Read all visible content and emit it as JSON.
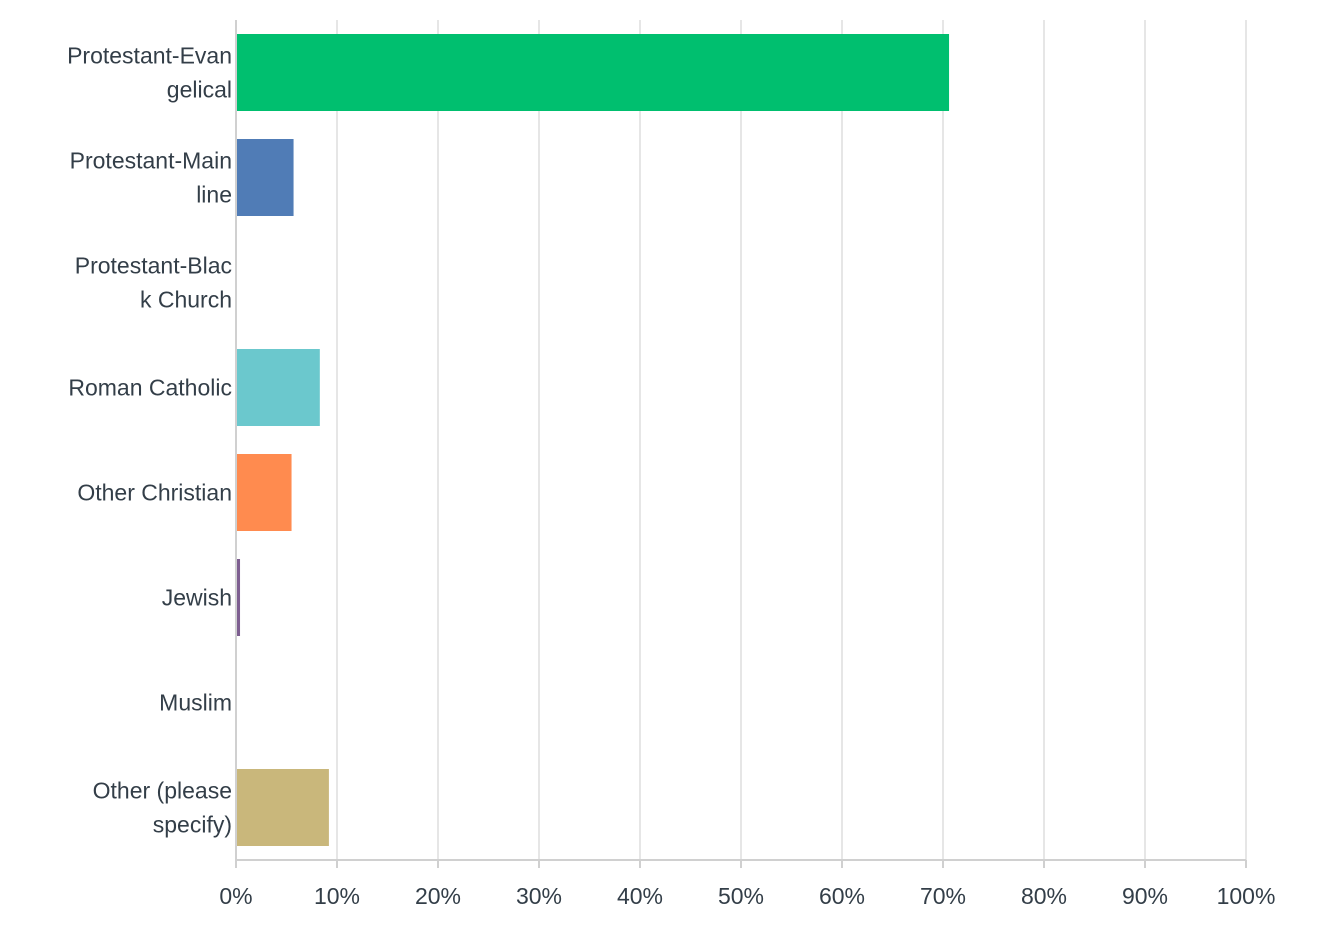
{
  "chart_data": {
    "type": "bar",
    "orientation": "horizontal",
    "categories": [
      [
        "Protestant-Evan",
        "gelical"
      ],
      [
        "Protestant-Main",
        "line"
      ],
      [
        "Protestant-Blac",
        "k Church"
      ],
      [
        "Roman Catholic"
      ],
      [
        "Other Christian"
      ],
      [
        "Jewish"
      ],
      [
        "Muslim"
      ],
      [
        "Other (please",
        "specify)"
      ]
    ],
    "values": [
      70.5,
      5.6,
      0,
      8.2,
      5.4,
      0.3,
      0,
      9.1
    ],
    "colors": [
      "#00bf6f",
      "#507cb6",
      "#6bc8cd",
      "#6bc8cd",
      "#ff8b4f",
      "#7d5e90",
      "#d25f90",
      "#c9b77b"
    ],
    "xlim": [
      0,
      100
    ],
    "ticks": [
      "0%",
      "10%",
      "20%",
      "30%",
      "40%",
      "50%",
      "60%",
      "70%",
      "80%",
      "90%",
      "100%"
    ],
    "grid": true,
    "title": "",
    "xlabel": "",
    "ylabel": ""
  }
}
